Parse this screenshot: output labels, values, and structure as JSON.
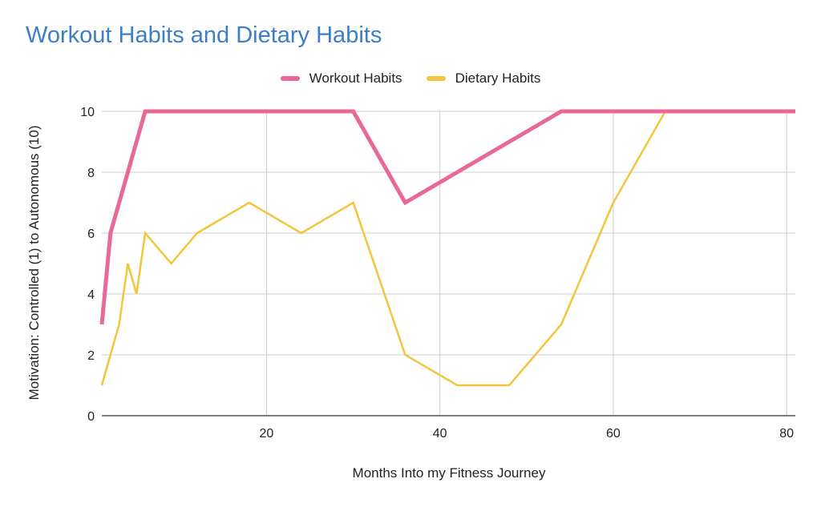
{
  "chart_data": {
    "type": "line",
    "title": "Workout Habits and Dietary Habits",
    "xlabel": "Months Into my Fitness Journey",
    "ylabel": "Motivation: Controlled (1) to Autonomous (10)",
    "xlim": [
      1,
      81
    ],
    "ylim": [
      0,
      10
    ],
    "x_ticks": [
      20,
      40,
      60,
      80
    ],
    "y_ticks": [
      0,
      2,
      4,
      6,
      8,
      10
    ],
    "grid": true,
    "legend_position": "top",
    "series": [
      {
        "name": "Workout Habits",
        "color": "#e8689a",
        "points": [
          [
            1,
            3
          ],
          [
            2,
            6
          ],
          [
            6,
            10
          ],
          [
            30,
            10
          ],
          [
            36,
            7
          ],
          [
            54,
            10
          ],
          [
            60,
            10
          ],
          [
            66,
            10
          ],
          [
            81,
            10
          ]
        ]
      },
      {
        "name": "Dietary Habits",
        "color": "#f2c53d",
        "points": [
          [
            1,
            1
          ],
          [
            3,
            3
          ],
          [
            4,
            5
          ],
          [
            5,
            4
          ],
          [
            6,
            6
          ],
          [
            9,
            5
          ],
          [
            12,
            6
          ],
          [
            18,
            7
          ],
          [
            24,
            6
          ],
          [
            30,
            7
          ],
          [
            36,
            2
          ],
          [
            42,
            1
          ],
          [
            48,
            1
          ],
          [
            54,
            3
          ],
          [
            60,
            7
          ],
          [
            66,
            10
          ],
          [
            81,
            10
          ]
        ]
      }
    ]
  }
}
